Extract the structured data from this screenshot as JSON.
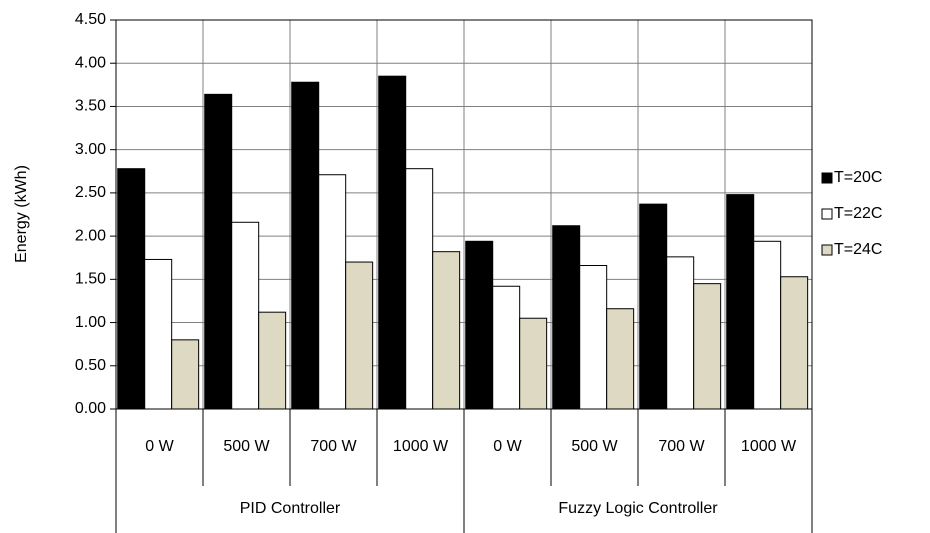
{
  "chart_data": {
    "type": "bar",
    "y_label": "Energy (kWh)",
    "groups": [
      {
        "name": "PID Controller",
        "categories": [
          "0 W",
          "500 W",
          "700 W",
          "1000 W"
        ]
      },
      {
        "name": "Fuzzy Logic Controller",
        "categories": [
          "0 W",
          "500 W",
          "700 W",
          "1000 W"
        ]
      }
    ],
    "series": [
      {
        "name": "T=20C",
        "color": "#000000",
        "values": [
          2.78,
          3.64,
          3.78,
          3.85,
          1.94,
          2.12,
          2.37,
          2.48
        ]
      },
      {
        "name": "T=22C",
        "color": "#ffffff",
        "values": [
          1.73,
          2.16,
          2.71,
          2.78,
          1.42,
          1.66,
          1.76,
          1.94
        ]
      },
      {
        "name": "T=24C",
        "color": "#ddd9c3",
        "values": [
          0.8,
          1.12,
          1.7,
          1.82,
          1.05,
          1.16,
          1.45,
          1.53
        ]
      }
    ],
    "ylim": [
      0,
      4.5
    ],
    "yticks": [
      {
        "value": 0,
        "label": "0.00"
      },
      {
        "value": 0.5,
        "label": "0.50"
      },
      {
        "value": 1,
        "label": "1.00"
      },
      {
        "value": 1.5,
        "label": "1.50"
      },
      {
        "value": 2,
        "label": "2.00"
      },
      {
        "value": 2.5,
        "label": "2.50"
      },
      {
        "value": 3,
        "label": "3.00"
      },
      {
        "value": 3.5,
        "label": "3.50"
      },
      {
        "value": 4,
        "label": "4.00"
      },
      {
        "value": 4.5,
        "label": "4.50"
      }
    ],
    "grid": true,
    "legend": "right"
  }
}
